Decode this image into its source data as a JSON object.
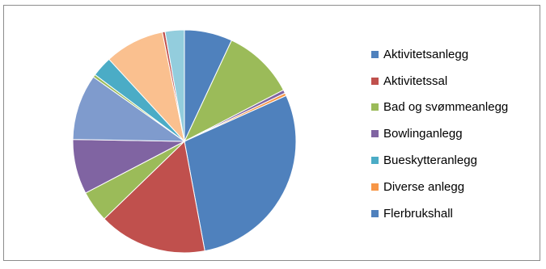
{
  "chart_data": {
    "type": "pie",
    "title": "",
    "legend_position": "right",
    "legend_visible_entries": 7,
    "slices": [
      {
        "label": "Aktivitetsanlegg",
        "value": 7.0,
        "color": "#4f81bd"
      },
      {
        "label": "Bad og svømmeanlegg",
        "value": 10.5,
        "color": "#9bbb59"
      },
      {
        "label": "Bowlinganlegg",
        "value": 0.5,
        "color": "#8064a2"
      },
      {
        "label": "Diverse anlegg",
        "value": 0.4,
        "color": "#f79646"
      },
      {
        "label": "Flerbrukshall",
        "value": 29.0,
        "color": "#4f81bd"
      },
      {
        "label": "Aktivitetssal",
        "value": 15.8,
        "color": "#c0504d"
      },
      {
        "label": "",
        "value": 4.6,
        "color": "#9bbb59"
      },
      {
        "label": "",
        "value": 8.0,
        "color": "#8064a2"
      },
      {
        "label": "",
        "value": 9.6,
        "color": "#7f9bcd"
      },
      {
        "label": "",
        "value": 0.4,
        "color": "#9bbb59"
      },
      {
        "label": "Bueskytteranlegg",
        "value": 3.0,
        "color": "#4bacc6"
      },
      {
        "label": "",
        "value": 8.7,
        "color": "#fac08f"
      },
      {
        "label": "",
        "value": 0.4,
        "color": "#c0504d"
      },
      {
        "label": "",
        "value": 2.8,
        "color": "#93cddd"
      }
    ],
    "legend": [
      {
        "label": "Aktivitetsanlegg",
        "color": "#4f81bd"
      },
      {
        "label": "Aktivitetssal",
        "color": "#c0504d"
      },
      {
        "label": "Bad og svømmeanlegg",
        "color": "#9bbb59"
      },
      {
        "label": "Bowlinganlegg",
        "color": "#8064a2"
      },
      {
        "label": "Bueskytteranlegg",
        "color": "#4bacc6"
      },
      {
        "label": "Diverse anlegg",
        "color": "#f79646"
      },
      {
        "label": "Flerbrukshall",
        "color": "#4f81bd"
      }
    ]
  }
}
